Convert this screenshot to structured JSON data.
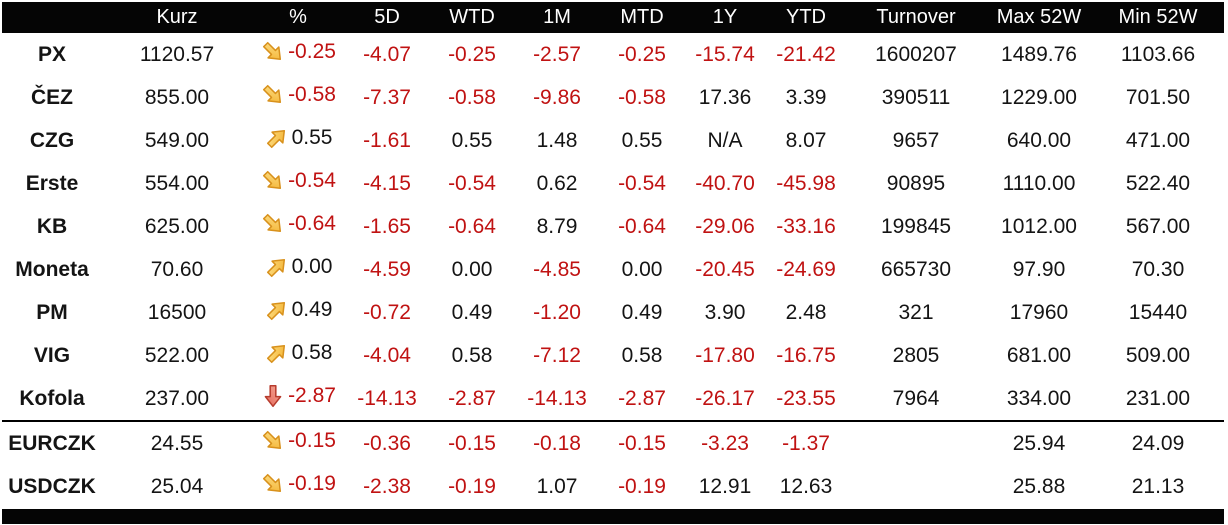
{
  "colors": {
    "negative": "#c01212",
    "positive": "#141414",
    "header_bg": "#050505",
    "header_text": "#ffffff",
    "arrow_gold": [
      "#fde08a",
      "#f3b02c"
    ],
    "arrow_gold_stroke": "#d8911c",
    "arrow_red": [
      "#f4a695",
      "#e5685a"
    ],
    "arrow_red_stroke": "#b73c2e"
  },
  "chart_data": {
    "type": "table",
    "columns": [
      "",
      "Kurz",
      "%",
      "5D",
      "WTD",
      "1M",
      "MTD",
      "1Y",
      "YTD",
      "Turnover",
      "Max 52W",
      "Min 52W"
    ],
    "value_color_rule": "values starting with '-' are rendered red, others black",
    "rows": [
      {
        "ticker": "PX",
        "trend_icon": "arrow-down-right",
        "values": [
          "1120.57",
          "-0.25",
          "-4.07",
          "-0.25",
          "-2.57",
          "-0.25",
          "-15.74",
          "-21.42",
          "1600207",
          "1489.76",
          "1103.66"
        ]
      },
      {
        "ticker": "ČEZ",
        "trend_icon": "arrow-down-right",
        "values": [
          "855.00",
          "-0.58",
          "-7.37",
          "-0.58",
          "-9.86",
          "-0.58",
          "17.36",
          "3.39",
          "390511",
          "1229.00",
          "701.50"
        ]
      },
      {
        "ticker": "CZG",
        "trend_icon": "arrow-up-right",
        "values": [
          "549.00",
          "0.55",
          "-1.61",
          "0.55",
          "1.48",
          "0.55",
          "N/A",
          "8.07",
          "9657",
          "640.00",
          "471.00"
        ]
      },
      {
        "ticker": "Erste",
        "trend_icon": "arrow-down-right",
        "values": [
          "554.00",
          "-0.54",
          "-4.15",
          "-0.54",
          "0.62",
          "-0.54",
          "-40.70",
          "-45.98",
          "90895",
          "1110.00",
          "522.40"
        ]
      },
      {
        "ticker": "KB",
        "trend_icon": "arrow-down-right",
        "values": [
          "625.00",
          "-0.64",
          "-1.65",
          "-0.64",
          "8.79",
          "-0.64",
          "-29.06",
          "-33.16",
          "199845",
          "1012.00",
          "567.00"
        ]
      },
      {
        "ticker": "Moneta",
        "trend_icon": "arrow-up-right",
        "values": [
          "70.60",
          "0.00",
          "-4.59",
          "0.00",
          "-4.85",
          "0.00",
          "-20.45",
          "-24.69",
          "665730",
          "97.90",
          "70.30"
        ]
      },
      {
        "ticker": "PM",
        "trend_icon": "arrow-up-right",
        "values": [
          "16500",
          "0.49",
          "-0.72",
          "0.49",
          "-1.20",
          "0.49",
          "3.90",
          "2.48",
          "321",
          "17960",
          "15440"
        ]
      },
      {
        "ticker": "VIG",
        "trend_icon": "arrow-up-right",
        "values": [
          "522.00",
          "0.58",
          "-4.04",
          "0.58",
          "-7.12",
          "0.58",
          "-17.80",
          "-16.75",
          "2805",
          "681.00",
          "509.00"
        ]
      },
      {
        "ticker": "Kofola",
        "trend_icon": "arrow-down",
        "values": [
          "237.00",
          "-2.87",
          "-14.13",
          "-2.87",
          "-14.13",
          "-2.87",
          "-26.17",
          "-23.55",
          "7964",
          "334.00",
          "231.00"
        ]
      },
      {
        "ticker": "EURCZK",
        "trend_icon": "arrow-down-right",
        "separator_above": true,
        "values": [
          "24.55",
          "-0.15",
          "-0.36",
          "-0.15",
          "-0.18",
          "-0.15",
          "-3.23",
          "-1.37",
          "",
          "25.94",
          "24.09"
        ]
      },
      {
        "ticker": "USDCZK",
        "trend_icon": "arrow-down-right",
        "values": [
          "25.04",
          "-0.19",
          "-2.38",
          "-0.19",
          "1.07",
          "-0.19",
          "12.91",
          "12.63",
          "",
          "25.88",
          "21.13"
        ]
      }
    ]
  }
}
